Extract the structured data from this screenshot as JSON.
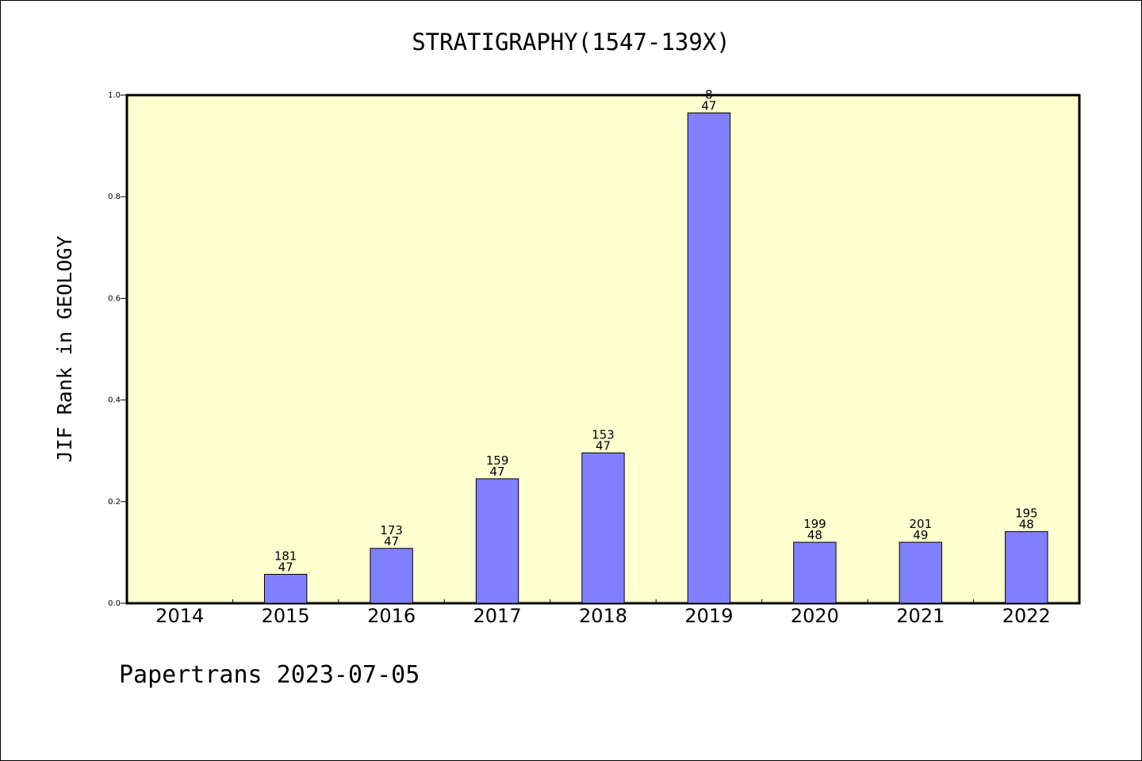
{
  "chart_data": {
    "type": "bar",
    "title": "STRATIGRAPHY(1547-139X)",
    "ylabel": "JIF Rank in GEOLOGY",
    "xlabel": "",
    "ylim": [
      0.0,
      1.0
    ],
    "yticks": [
      "0.0",
      "0.2",
      "0.4",
      "0.6",
      "0.8",
      "1.0"
    ],
    "categories": [
      "2014",
      "2015",
      "2016",
      "2017",
      "2018",
      "2019",
      "2020",
      "2021",
      "2022"
    ],
    "values": [
      null,
      0.057,
      0.108,
      0.245,
      0.296,
      0.965,
      0.12,
      0.12,
      0.141
    ],
    "labels_top": [
      "",
      "181",
      "173",
      "159",
      "153",
      "8",
      "199",
      "201",
      "195"
    ],
    "labels_bottom": [
      "",
      "47",
      "47",
      "47",
      "47",
      "47",
      "48",
      "49",
      "48"
    ],
    "grid": false,
    "colors": {
      "bar": "#8080ff",
      "plot_background": "#ffffd0"
    }
  },
  "footer": "Papertrans 2023-07-05"
}
